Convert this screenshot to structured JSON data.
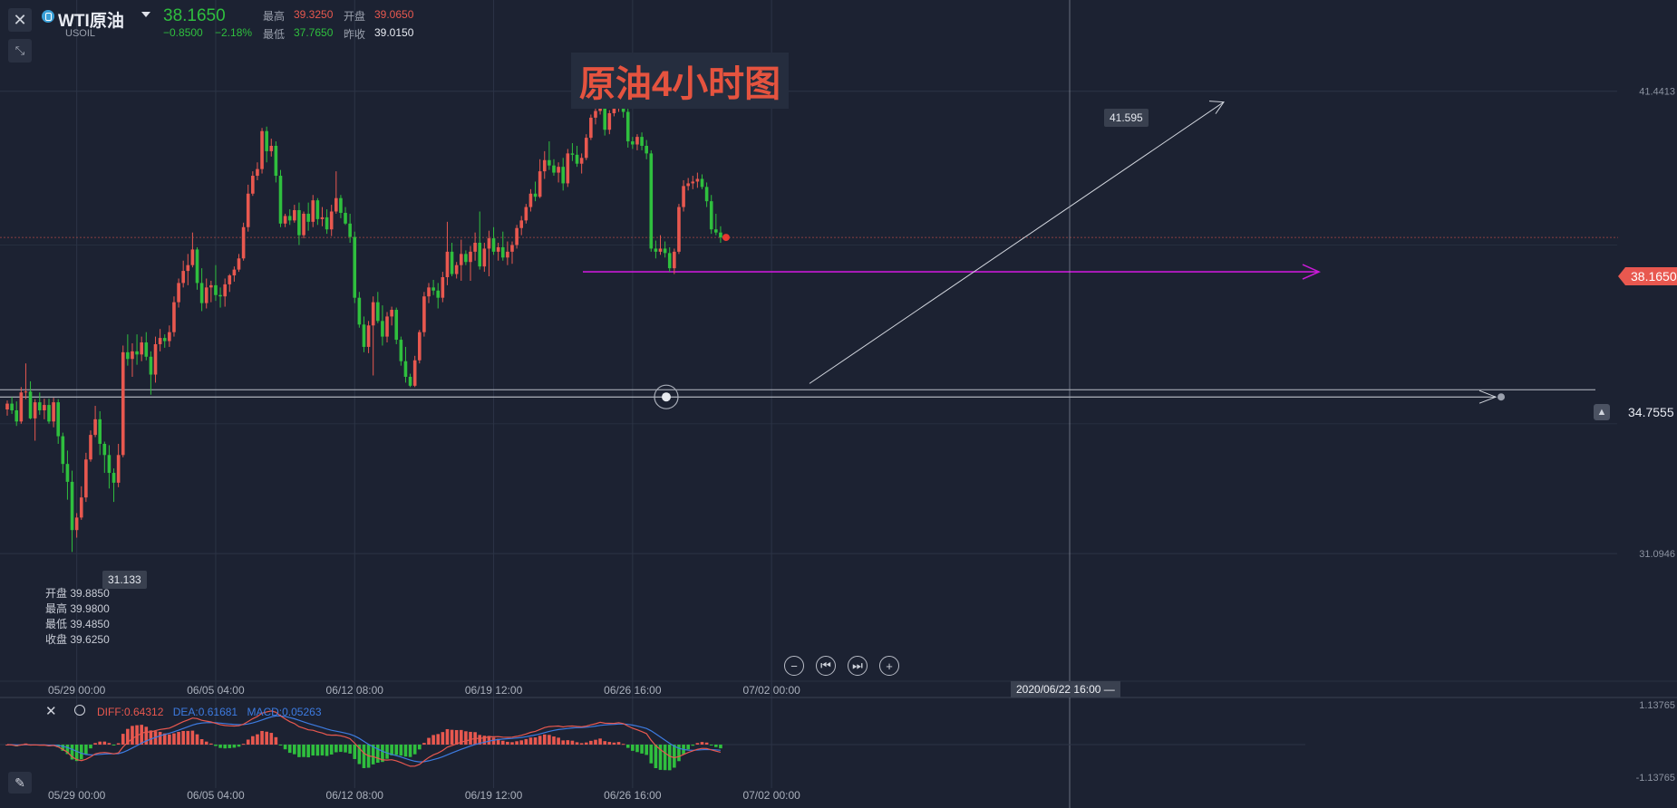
{
  "header": {
    "symbol_name": "WTI原油",
    "symbol_code": "USOIL",
    "last_price": "38.1650",
    "change": "−0.8500",
    "change_pct": "−2.18%",
    "high_label": "最高",
    "high_value": "39.3250",
    "open_label": "开盘",
    "open_value": "39.0650",
    "low_label": "最低",
    "low_value": "37.7650",
    "prev_close_label": "昨收",
    "prev_close_value": "39.0150"
  },
  "annotation_title": "原油4小时图",
  "price_tags": {
    "current": "38.1650",
    "alert": "34.7555",
    "high_marker": "41.595",
    "low_marker": "31.133"
  },
  "crosshair_time": "2020/06/22 16:00",
  "ohlc_box": {
    "rows": [
      {
        "label": "开盘",
        "value": "39.8850"
      },
      {
        "label": "最高",
        "value": "39.9800"
      },
      {
        "label": "最低",
        "value": "39.4850"
      },
      {
        "label": "收盘",
        "value": "39.6250"
      }
    ]
  },
  "macd_legend": {
    "diff": "DIFF:0.64312",
    "dea": "DEA:0.61681",
    "macd": "MACD:0.05263"
  },
  "colors": {
    "background": "#1c2232",
    "up": "#e8584f",
    "down": "#2fbf3e",
    "diff_line": "#e8584f",
    "dea_line": "#3d7be0",
    "support_line": "#c81ad6",
    "current_price_tag": "#e8584f",
    "title_text": "#e5533f"
  },
  "icons": [
    "close-icon",
    "collapse-icon",
    "dropdown-caret-icon",
    "zoom-out-icon",
    "skip-start-icon",
    "skip-end-icon",
    "zoom-in-icon",
    "settings-icon",
    "alarm-bell-icon",
    "pencil-icon"
  ],
  "chart_data": {
    "type": "candlestick",
    "x_tick_labels": [
      "05/29 00:00",
      "06/05 04:00",
      "06/12 08:00",
      "06/19 12:00",
      "06/26 16:00",
      "07/02 00:00"
    ],
    "y_tick_labels": [
      "41.4413",
      "31.0946"
    ],
    "y_range": [
      28.4,
      43.2
    ],
    "bars_per_day": 6,
    "series_start_index": 0,
    "x_tick_indices": [
      15,
      45,
      75,
      105,
      135,
      165
    ],
    "candles": [
      [
        34.32,
        34.52,
        34.18,
        34.45
      ],
      [
        34.45,
        34.6,
        34.22,
        34.3
      ],
      [
        34.3,
        34.5,
        33.95,
        34.05
      ],
      [
        34.05,
        34.82,
        34.0,
        34.7
      ],
      [
        34.7,
        35.35,
        34.55,
        34.72
      ],
      [
        34.72,
        34.95,
        34.1,
        34.12
      ],
      [
        34.12,
        34.55,
        33.62,
        34.48
      ],
      [
        34.48,
        34.7,
        34.2,
        34.3
      ],
      [
        34.3,
        34.56,
        34.1,
        34.42
      ],
      [
        34.42,
        34.56,
        34.0,
        34.05
      ],
      [
        34.05,
        34.58,
        33.92,
        34.48
      ],
      [
        34.48,
        34.55,
        33.55,
        33.72
      ],
      [
        33.72,
        33.8,
        32.9,
        33.1
      ],
      [
        33.1,
        33.4,
        32.3,
        32.7
      ],
      [
        32.7,
        32.95,
        31.13,
        31.62
      ],
      [
        31.62,
        32.0,
        31.45,
        31.9
      ],
      [
        31.9,
        32.6,
        31.85,
        32.35
      ],
      [
        32.35,
        33.35,
        32.25,
        33.2
      ],
      [
        33.2,
        33.85,
        33.15,
        33.75
      ],
      [
        33.75,
        34.4,
        33.7,
        34.1
      ],
      [
        34.1,
        34.28,
        33.3,
        33.55
      ],
      [
        33.55,
        33.6,
        32.9,
        33.3
      ],
      [
        33.3,
        33.52,
        32.55,
        32.9
      ],
      [
        32.9,
        33.0,
        32.25,
        32.68
      ],
      [
        32.68,
        33.55,
        32.58,
        33.3
      ],
      [
        33.3,
        35.75,
        33.25,
        35.6
      ],
      [
        35.6,
        36.0,
        35.3,
        35.45
      ],
      [
        35.45,
        35.8,
        35.05,
        35.62
      ],
      [
        35.62,
        36.0,
        35.32,
        35.55
      ],
      [
        35.55,
        35.95,
        35.4,
        35.82
      ],
      [
        35.82,
        36.05,
        35.42,
        35.5
      ],
      [
        35.5,
        35.62,
        34.65,
        35.1
      ],
      [
        35.1,
        35.95,
        34.92,
        35.78
      ],
      [
        35.78,
        36.12,
        35.62,
        35.92
      ],
      [
        35.92,
        36.0,
        35.7,
        35.85
      ],
      [
        35.85,
        36.2,
        35.72,
        36.05
      ],
      [
        36.05,
        36.85,
        35.95,
        36.72
      ],
      [
        36.72,
        37.25,
        36.6,
        37.15
      ],
      [
        37.15,
        37.65,
        37.05,
        37.42
      ],
      [
        37.42,
        37.8,
        37.1,
        37.55
      ],
      [
        37.55,
        38.28,
        37.5,
        37.9
      ],
      [
        37.9,
        37.95,
        37.0,
        37.15
      ],
      [
        37.15,
        37.48,
        36.52,
        36.7
      ],
      [
        36.7,
        37.25,
        36.58,
        37.05
      ],
      [
        37.05,
        37.2,
        36.72,
        37.1
      ],
      [
        37.1,
        37.55,
        36.75,
        36.88
      ],
      [
        36.88,
        37.05,
        36.6,
        36.85
      ],
      [
        36.85,
        37.25,
        36.62,
        37.12
      ],
      [
        37.12,
        37.35,
        36.95,
        37.32
      ],
      [
        37.32,
        37.52,
        37.18,
        37.45
      ],
      [
        37.45,
        37.8,
        37.4,
        37.7
      ],
      [
        37.7,
        38.5,
        37.65,
        38.4
      ],
      [
        38.4,
        39.35,
        38.3,
        39.15
      ],
      [
        39.15,
        39.65,
        39.1,
        39.55
      ],
      [
        39.55,
        39.85,
        39.45,
        39.7
      ],
      [
        39.7,
        40.62,
        39.6,
        40.55
      ],
      [
        40.55,
        40.65,
        39.85,
        40.1
      ],
      [
        40.1,
        40.38,
        39.98,
        40.22
      ],
      [
        40.22,
        40.32,
        39.4,
        39.55
      ],
      [
        39.55,
        39.68,
        38.4,
        38.48
      ],
      [
        38.48,
        38.7,
        38.4,
        38.65
      ],
      [
        38.65,
        38.8,
        38.45,
        38.55
      ],
      [
        38.55,
        38.9,
        38.5,
        38.78
      ],
      [
        38.78,
        38.95,
        38.0,
        38.22
      ],
      [
        38.22,
        38.75,
        38.15,
        38.7
      ],
      [
        38.7,
        38.95,
        38.32,
        38.52
      ],
      [
        38.52,
        39.12,
        38.4,
        39.0
      ],
      [
        39.0,
        39.05,
        38.45,
        38.58
      ],
      [
        38.58,
        38.85,
        38.42,
        38.62
      ],
      [
        38.62,
        38.8,
        38.25,
        38.35
      ],
      [
        38.35,
        38.9,
        38.2,
        38.75
      ],
      [
        38.75,
        39.65,
        38.7,
        39.05
      ],
      [
        39.05,
        39.12,
        38.6,
        38.72
      ],
      [
        38.72,
        38.85,
        38.45,
        38.48
      ],
      [
        38.48,
        38.7,
        38.05,
        38.18
      ],
      [
        38.18,
        38.3,
        36.7,
        36.82
      ],
      [
        36.82,
        36.95,
        36.15,
        36.22
      ],
      [
        36.22,
        36.4,
        35.6,
        35.72
      ],
      [
        35.72,
        36.3,
        35.58,
        36.2
      ],
      [
        36.2,
        36.85,
        35.08,
        36.72
      ],
      [
        36.72,
        36.95,
        36.25,
        36.3
      ],
      [
        36.3,
        36.65,
        35.75,
        35.95
      ],
      [
        35.95,
        36.5,
        35.82,
        36.4
      ],
      [
        36.4,
        36.62,
        36.2,
        36.55
      ],
      [
        36.55,
        36.6,
        35.78,
        35.88
      ],
      [
        35.88,
        35.95,
        35.3,
        35.4
      ],
      [
        35.4,
        35.72,
        34.92,
        35.05
      ],
      [
        35.05,
        35.12,
        34.82,
        34.85
      ],
      [
        34.85,
        35.52,
        34.82,
        35.42
      ],
      [
        35.42,
        36.1,
        35.35,
        36.05
      ],
      [
        36.05,
        36.95,
        35.95,
        36.85
      ],
      [
        36.85,
        37.15,
        36.7,
        37.05
      ],
      [
        37.05,
        37.22,
        36.88,
        36.98
      ],
      [
        36.98,
        37.15,
        36.58,
        36.82
      ],
      [
        36.82,
        37.4,
        36.72,
        37.28
      ],
      [
        37.28,
        38.52,
        37.1,
        37.85
      ],
      [
        37.85,
        38.05,
        37.3,
        37.35
      ],
      [
        37.35,
        37.62,
        37.25,
        37.55
      ],
      [
        37.55,
        38.12,
        37.2,
        37.8
      ],
      [
        37.8,
        37.88,
        37.55,
        37.62
      ],
      [
        37.62,
        37.98,
        37.2,
        37.85
      ],
      [
        37.85,
        38.28,
        37.65,
        38.05
      ],
      [
        38.05,
        38.75,
        37.45,
        37.52
      ],
      [
        37.52,
        38.05,
        37.4,
        37.92
      ],
      [
        37.92,
        38.32,
        37.3,
        38.15
      ],
      [
        38.15,
        38.4,
        37.78,
        37.85
      ],
      [
        37.85,
        38.05,
        37.65,
        37.95
      ],
      [
        37.95,
        38.3,
        37.65,
        37.72
      ],
      [
        37.72,
        38.08,
        37.55,
        37.85
      ],
      [
        37.85,
        38.08,
        37.58,
        38.0
      ],
      [
        38.0,
        38.45,
        37.92,
        38.38
      ],
      [
        38.38,
        38.65,
        38.22,
        38.55
      ],
      [
        38.55,
        38.92,
        38.48,
        38.85
      ],
      [
        38.85,
        39.25,
        38.75,
        39.15
      ],
      [
        39.15,
        39.42,
        38.98,
        39.08
      ],
      [
        39.08,
        39.92,
        39.05,
        39.65
      ],
      [
        39.65,
        40.1,
        39.48,
        39.9
      ],
      [
        39.9,
        40.32,
        39.68,
        39.78
      ],
      [
        39.78,
        39.92,
        39.55,
        39.62
      ],
      [
        39.62,
        39.85,
        39.4,
        39.75
      ],
      [
        39.75,
        39.95,
        39.22,
        39.38
      ],
      [
        39.38,
        40.15,
        39.3,
        40.05
      ],
      [
        40.05,
        40.28,
        39.88,
        40.02
      ],
      [
        40.02,
        40.22,
        39.75,
        39.82
      ],
      [
        39.82,
        40.05,
        39.6,
        39.95
      ],
      [
        39.95,
        40.48,
        39.9,
        40.4
      ],
      [
        40.4,
        40.92,
        40.35,
        40.85
      ],
      [
        40.85,
        41.12,
        40.7,
        41.0
      ],
      [
        41.0,
        41.45,
        40.92,
        41.32
      ],
      [
        41.32,
        41.42,
        40.45,
        40.58
      ],
      [
        40.58,
        41.02,
        40.48,
        40.95
      ],
      [
        40.95,
        41.12,
        40.88,
        41.05
      ],
      [
        41.05,
        41.59,
        40.98,
        41.45
      ],
      [
        41.45,
        41.55,
        40.85,
        40.98
      ],
      [
        40.98,
        41.05,
        40.18,
        40.32
      ],
      [
        40.32,
        40.42,
        40.15,
        40.25
      ],
      [
        40.25,
        40.48,
        40.12,
        40.42
      ],
      [
        40.42,
        40.52,
        40.12,
        40.22
      ],
      [
        40.22,
        40.35,
        39.92,
        40.05
      ],
      [
        40.05,
        40.12,
        37.85,
        37.92
      ],
      [
        37.92,
        38.1,
        37.7,
        37.85
      ],
      [
        37.85,
        38.22,
        37.78,
        37.92
      ],
      [
        37.92,
        38.08,
        37.72,
        37.82
      ],
      [
        37.82,
        37.95,
        37.4,
        37.48
      ],
      [
        37.48,
        37.92,
        37.35,
        37.85
      ],
      [
        37.85,
        38.92,
        37.8,
        38.85
      ],
      [
        38.85,
        39.45,
        38.75,
        39.32
      ],
      [
        39.32,
        39.5,
        39.22,
        39.38
      ],
      [
        39.38,
        39.55,
        39.25,
        39.42
      ],
      [
        39.42,
        39.62,
        39.28,
        39.48
      ],
      [
        39.48,
        39.58,
        39.25,
        39.3
      ],
      [
        39.3,
        39.4,
        38.85,
        38.98
      ],
      [
        38.98,
        39.12,
        38.25,
        38.35
      ],
      [
        38.35,
        38.7,
        38.22,
        38.28
      ],
      [
        38.28,
        38.42,
        38.05,
        38.17
      ]
    ],
    "overlay_lines": [
      {
        "name": "trend-arrow",
        "from": [
          87,
          34.9
        ],
        "to": [
          132,
          41.2
        ]
      },
      {
        "name": "support-line",
        "from": [
          62,
          37.4
        ],
        "to": [
          142,
          37.4
        ]
      },
      {
        "name": "alert-line",
        "from": [
          0,
          34.76
        ],
        "to": [
          159,
          34.76
        ]
      },
      {
        "name": "arrow-line",
        "from": [
          0,
          34.6
        ],
        "to": [
          159,
          34.6
        ]
      }
    ],
    "macd": {
      "diff_label": "DIFF:0.64312",
      "dea_label": "DEA:0.61681",
      "macd_label": "MACD:0.05263",
      "y_tick_labels": [
        "1.13765",
        "-1.13765"
      ],
      "y_range": [
        -1.13765,
        1.13765
      ]
    }
  }
}
